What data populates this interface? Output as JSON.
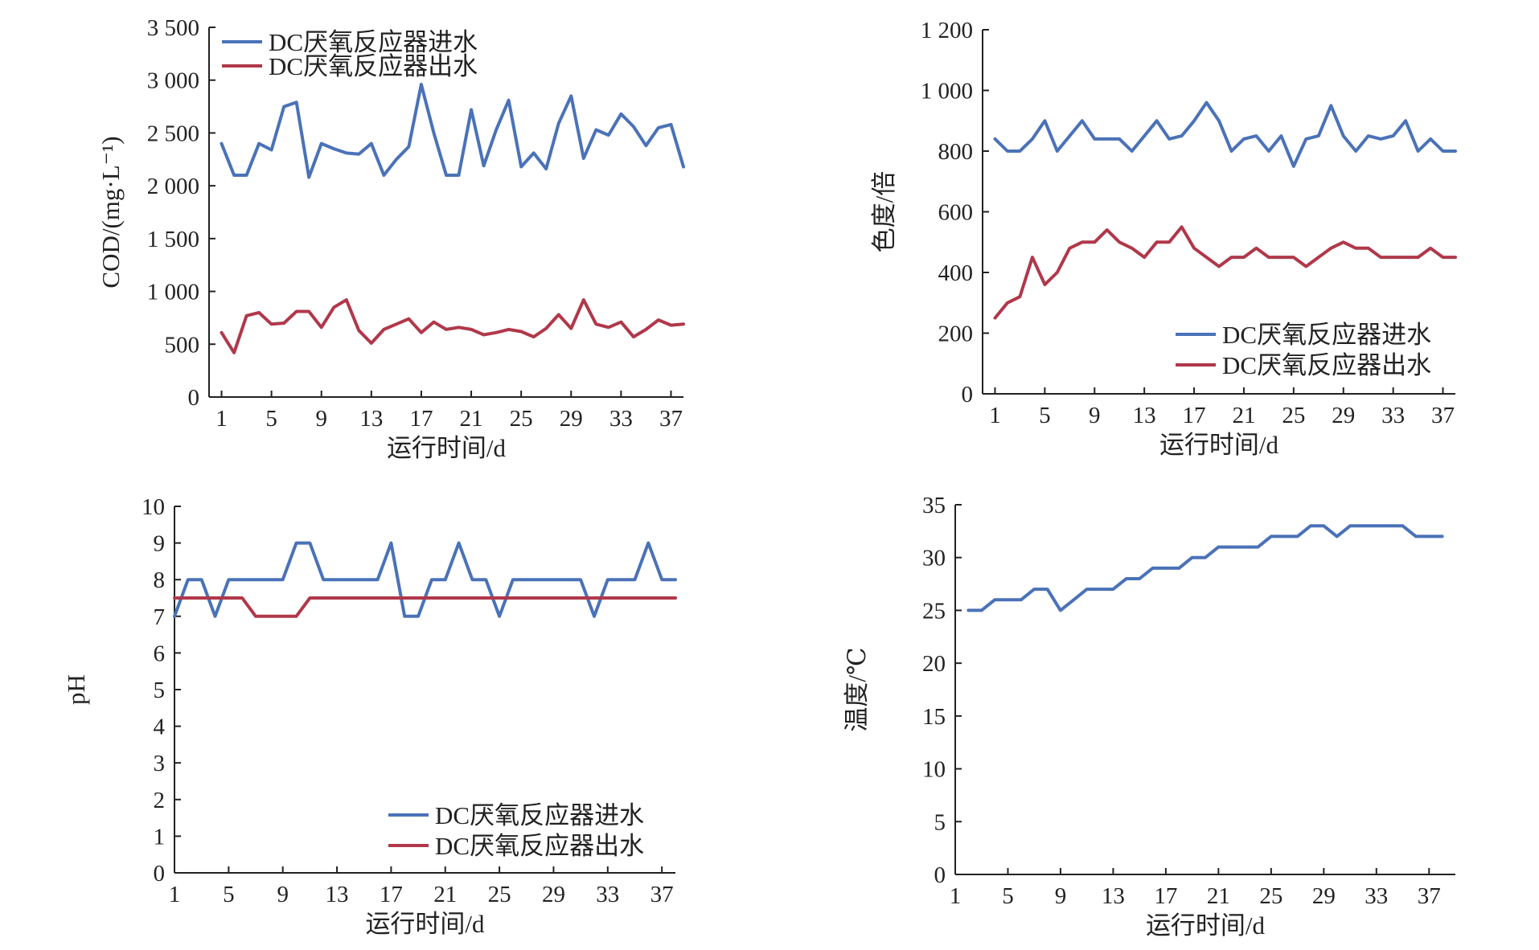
{
  "colors": {
    "inflow": "#4a72b8",
    "outflow": "#b0384a",
    "axis": "#222222"
  },
  "chart_data": [
    {
      "id": "cod",
      "type": "line",
      "xlabel": "运行时间/d",
      "ylabel": "COD/(mg·L⁻¹)",
      "xlim": [
        0,
        38
      ],
      "ylim": [
        0,
        3500
      ],
      "xticks": [
        1,
        5,
        9,
        13,
        17,
        21,
        25,
        29,
        33,
        37
      ],
      "xtick_labels": [
        "1",
        "5",
        "9",
        "13",
        "17",
        "21",
        "25",
        "29",
        "33",
        "37"
      ],
      "yticks": [
        0,
        500,
        1000,
        1500,
        2000,
        2500,
        3000,
        3500
      ],
      "ytick_labels": [
        "0",
        "500",
        "1 000",
        "1 500",
        "2 000",
        "2 500",
        "3 000",
        "3 500"
      ],
      "legend_position": "top-left",
      "series": [
        {
          "name": "DC厌氧反应器进水",
          "color": "#4a72b8",
          "x": [
            1,
            2,
            3,
            4,
            5,
            6,
            7,
            8,
            9,
            10,
            11,
            12,
            13,
            14,
            15,
            16,
            17,
            18,
            19,
            20,
            21,
            22,
            23,
            24,
            25,
            26,
            27,
            28,
            29,
            30,
            31,
            32,
            33,
            34,
            35,
            36,
            37,
            38
          ],
          "y": [
            2400,
            2100,
            2100,
            2400,
            2340,
            2750,
            2790,
            2080,
            2400,
            2350,
            2310,
            2300,
            2400,
            2100,
            2250,
            2370,
            2960,
            2500,
            2100,
            2100,
            2720,
            2190,
            2530,
            2810,
            2180,
            2310,
            2160,
            2590,
            2850,
            2260,
            2530,
            2480,
            2680,
            2560,
            2380,
            2550,
            2580,
            2180
          ]
        },
        {
          "name": "DC厌氧反应器出水",
          "color": "#b0384a",
          "x": [
            1,
            2,
            3,
            4,
            5,
            6,
            7,
            8,
            9,
            10,
            11,
            12,
            13,
            14,
            15,
            16,
            17,
            18,
            19,
            20,
            21,
            22,
            23,
            24,
            25,
            26,
            27,
            28,
            29,
            30,
            31,
            32,
            33,
            34,
            35,
            36,
            37,
            38
          ],
          "y": [
            610,
            420,
            770,
            800,
            690,
            700,
            810,
            810,
            660,
            850,
            920,
            630,
            510,
            640,
            690,
            740,
            610,
            710,
            640,
            660,
            640,
            590,
            610,
            640,
            620,
            570,
            650,
            780,
            650,
            920,
            690,
            660,
            710,
            570,
            640,
            730,
            680,
            690
          ]
        }
      ]
    },
    {
      "id": "color",
      "type": "line",
      "xlabel": "运行时间/d",
      "ylabel": "色度/倍",
      "xlim": [
        0,
        38
      ],
      "ylim": [
        0,
        1200
      ],
      "xticks": [
        1,
        5,
        9,
        13,
        17,
        21,
        25,
        29,
        33,
        37
      ],
      "xtick_labels": [
        "1",
        "5",
        "9",
        "13",
        "17",
        "21",
        "25",
        "29",
        "33",
        "37"
      ],
      "yticks": [
        0,
        200,
        400,
        600,
        800,
        1000,
        1200
      ],
      "ytick_labels": [
        "0",
        "200",
        "400",
        "600",
        "800",
        "1 000",
        "1 200"
      ],
      "legend_position": "bottom-right",
      "series": [
        {
          "name": "DC厌氧反应器进水",
          "color": "#4a72b8",
          "x": [
            1,
            2,
            3,
            4,
            5,
            6,
            7,
            8,
            9,
            10,
            11,
            12,
            13,
            14,
            15,
            16,
            17,
            18,
            19,
            20,
            21,
            22,
            23,
            24,
            25,
            26,
            27,
            28,
            29,
            30,
            31,
            32,
            33,
            34,
            35,
            36,
            37,
            38
          ],
          "y": [
            840,
            800,
            800,
            840,
            900,
            800,
            850,
            900,
            840,
            840,
            840,
            800,
            850,
            900,
            840,
            850,
            900,
            960,
            900,
            800,
            840,
            850,
            800,
            850,
            750,
            840,
            850,
            950,
            850,
            800,
            850,
            840,
            850,
            900,
            800,
            840,
            800,
            800
          ]
        },
        {
          "name": "DC厌氧反应器出水",
          "color": "#b0384a",
          "x": [
            1,
            2,
            3,
            4,
            5,
            6,
            7,
            8,
            9,
            10,
            11,
            12,
            13,
            14,
            15,
            16,
            17,
            18,
            19,
            20,
            21,
            22,
            23,
            24,
            25,
            26,
            27,
            28,
            29,
            30,
            31,
            32,
            33,
            34,
            35,
            36,
            37,
            38
          ],
          "y": [
            250,
            300,
            320,
            450,
            360,
            400,
            480,
            500,
            500,
            540,
            500,
            480,
            450,
            500,
            500,
            550,
            480,
            450,
            420,
            450,
            450,
            480,
            450,
            450,
            450,
            420,
            450,
            480,
            500,
            480,
            480,
            450,
            450,
            450,
            450,
            480,
            450,
            450
          ]
        }
      ]
    },
    {
      "id": "ph",
      "type": "line",
      "xlabel": "运行时间/d",
      "ylabel": "pH",
      "xlim": [
        1,
        38
      ],
      "ylim": [
        0,
        10
      ],
      "xticks": [
        1,
        5,
        9,
        13,
        17,
        21,
        25,
        29,
        33,
        37
      ],
      "xtick_labels": [
        "1",
        "5",
        "9",
        "13",
        "17",
        "21",
        "25",
        "29",
        "33",
        "37"
      ],
      "yticks": [
        0,
        1,
        2,
        3,
        4,
        5,
        6,
        7,
        8,
        9,
        10
      ],
      "ytick_labels": [
        "0",
        "1",
        "2",
        "3",
        "4",
        "5",
        "6",
        "7",
        "8",
        "9",
        "10"
      ],
      "legend_position": "bottom-right",
      "series": [
        {
          "name": "DC厌氧反应器进水",
          "color": "#4a72b8",
          "x": [
            1,
            2,
            3,
            4,
            5,
            6,
            7,
            8,
            9,
            10,
            11,
            12,
            13,
            14,
            15,
            16,
            17,
            18,
            19,
            20,
            21,
            22,
            23,
            24,
            25,
            26,
            27,
            28,
            29,
            30,
            31,
            32,
            33,
            34,
            35,
            36,
            37,
            38
          ],
          "y": [
            7,
            8,
            8,
            7,
            8,
            8,
            8,
            8,
            8,
            9,
            9,
            8,
            8,
            8,
            8,
            8,
            9,
            7,
            7,
            8,
            8,
            9,
            8,
            8,
            7,
            8,
            8,
            8,
            8,
            8,
            8,
            7,
            8,
            8,
            8,
            9,
            8,
            8
          ]
        },
        {
          "name": "DC厌氧反应器出水",
          "color": "#b0384a",
          "x": [
            1,
            2,
            3,
            4,
            5,
            6,
            7,
            8,
            9,
            10,
            11,
            12,
            13,
            14,
            15,
            16,
            17,
            18,
            19,
            20,
            21,
            22,
            23,
            24,
            25,
            26,
            27,
            28,
            29,
            30,
            31,
            32,
            33,
            34,
            35,
            36,
            37,
            38
          ],
          "y": [
            7.5,
            7.5,
            7.5,
            7.5,
            7.5,
            7.5,
            7,
            7,
            7,
            7,
            7.5,
            7.5,
            7.5,
            7.5,
            7.5,
            7.5,
            7.5,
            7.5,
            7.5,
            7.5,
            7.5,
            7.5,
            7.5,
            7.5,
            7.5,
            7.5,
            7.5,
            7.5,
            7.5,
            7.5,
            7.5,
            7.5,
            7.5,
            7.5,
            7.5,
            7.5,
            7.5,
            7.5
          ]
        }
      ]
    },
    {
      "id": "temp",
      "type": "line",
      "xlabel": "运行时间/d",
      "ylabel": "温度/℃",
      "xlim": [
        1,
        39
      ],
      "ylim": [
        0,
        35
      ],
      "xticks": [
        1,
        5,
        9,
        13,
        17,
        21,
        25,
        29,
        33,
        37
      ],
      "xtick_labels": [
        "1",
        "5",
        "9",
        "13",
        "17",
        "21",
        "25",
        "29",
        "33",
        "37"
      ],
      "yticks": [
        0,
        5,
        10,
        15,
        20,
        25,
        30,
        35
      ],
      "ytick_labels": [
        "0",
        "5",
        "10",
        "15",
        "20",
        "25",
        "30",
        "35"
      ],
      "series": [
        {
          "color": "#4a72b8",
          "x": [
            2,
            3,
            4,
            5,
            6,
            7,
            8,
            9,
            10,
            11,
            12,
            13,
            14,
            15,
            16,
            17,
            18,
            19,
            20,
            21,
            22,
            23,
            24,
            25,
            26,
            27,
            28,
            29,
            30,
            31,
            32,
            33,
            34,
            35,
            36,
            37,
            38
          ],
          "y": [
            25,
            25,
            26,
            26,
            26,
            27,
            27,
            25,
            26,
            27,
            27,
            27,
            28,
            28,
            29,
            29,
            29,
            30,
            30,
            31,
            31,
            31,
            31,
            32,
            32,
            32,
            33,
            33,
            32,
            33,
            33,
            33,
            33,
            33,
            32,
            32,
            32
          ]
        }
      ]
    }
  ]
}
